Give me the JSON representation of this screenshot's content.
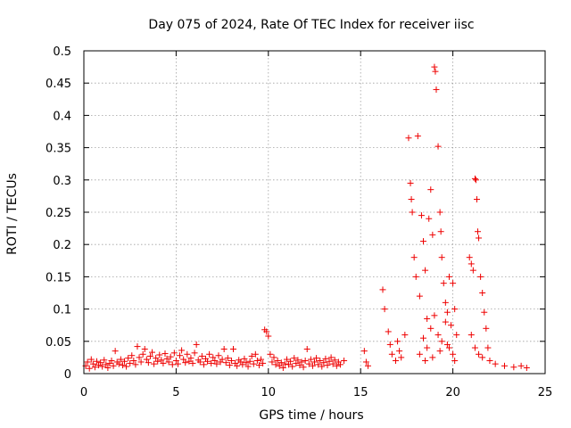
{
  "chart_data": {
    "type": "scatter",
    "title": "Day 075 of 2024, Rate Of TEC Index for receiver iisc",
    "xlabel": "GPS time / hours",
    "ylabel": "ROTI / TECUs",
    "xlim": [
      0,
      25
    ],
    "ylim": [
      0,
      0.5
    ],
    "xticks": [
      "0",
      "5",
      "10",
      "15",
      "20",
      "25"
    ],
    "yticks": [
      "0",
      "0.05",
      "0.1",
      "0.15",
      "0.2",
      "0.25",
      "0.3",
      "0.35",
      "0.4",
      "0.45",
      "0.5"
    ],
    "grid": true,
    "marker": "+",
    "color": "#ee0000",
    "series": [
      {
        "name": "ROTI",
        "points": [
          [
            0.1,
            0.012
          ],
          [
            0.2,
            0.018
          ],
          [
            0.3,
            0.008
          ],
          [
            0.4,
            0.022
          ],
          [
            0.5,
            0.015
          ],
          [
            0.6,
            0.01
          ],
          [
            0.7,
            0.019
          ],
          [
            0.8,
            0.013
          ],
          [
            0.9,
            0.017
          ],
          [
            1.0,
            0.011
          ],
          [
            1.1,
            0.021
          ],
          [
            1.2,
            0.014
          ],
          [
            1.3,
            0.009
          ],
          [
            1.4,
            0.016
          ],
          [
            1.5,
            0.02
          ],
          [
            1.6,
            0.012
          ],
          [
            1.7,
            0.035
          ],
          [
            1.8,
            0.018
          ],
          [
            1.9,
            0.015
          ],
          [
            2.0,
            0.022
          ],
          [
            2.1,
            0.013
          ],
          [
            2.2,
            0.019
          ],
          [
            2.3,
            0.011
          ],
          [
            2.4,
            0.024
          ],
          [
            2.5,
            0.016
          ],
          [
            2.6,
            0.028
          ],
          [
            2.7,
            0.02
          ],
          [
            2.8,
            0.014
          ],
          [
            2.9,
            0.042
          ],
          [
            3.0,
            0.025
          ],
          [
            3.1,
            0.018
          ],
          [
            3.2,
            0.03
          ],
          [
            3.3,
            0.038
          ],
          [
            3.4,
            0.022
          ],
          [
            3.5,
            0.017
          ],
          [
            3.6,
            0.027
          ],
          [
            3.7,
            0.033
          ],
          [
            3.8,
            0.015
          ],
          [
            3.9,
            0.024
          ],
          [
            4.0,
            0.019
          ],
          [
            4.1,
            0.029
          ],
          [
            4.2,
            0.021
          ],
          [
            4.3,
            0.016
          ],
          [
            4.4,
            0.031
          ],
          [
            4.5,
            0.023
          ],
          [
            4.6,
            0.018
          ],
          [
            4.7,
            0.026
          ],
          [
            4.8,
            0.014
          ],
          [
            4.9,
            0.032
          ],
          [
            5.0,
            0.02
          ],
          [
            5.1,
            0.015
          ],
          [
            5.2,
            0.028
          ],
          [
            5.3,
            0.036
          ],
          [
            5.4,
            0.022
          ],
          [
            5.5,
            0.017
          ],
          [
            5.6,
            0.03
          ],
          [
            5.7,
            0.019
          ],
          [
            5.8,
            0.024
          ],
          [
            5.9,
            0.016
          ],
          [
            6.0,
            0.032
          ],
          [
            6.1,
            0.045
          ],
          [
            6.2,
            0.021
          ],
          [
            6.3,
            0.018
          ],
          [
            6.4,
            0.027
          ],
          [
            6.5,
            0.014
          ],
          [
            6.6,
            0.023
          ],
          [
            6.7,
            0.019
          ],
          [
            6.8,
            0.03
          ],
          [
            6.9,
            0.016
          ],
          [
            7.0,
            0.025
          ],
          [
            7.1,
            0.02
          ],
          [
            7.2,
            0.015
          ],
          [
            7.3,
            0.028
          ],
          [
            7.4,
            0.018
          ],
          [
            7.5,
            0.022
          ],
          [
            7.6,
            0.038
          ],
          [
            7.7,
            0.017
          ],
          [
            7.8,
            0.024
          ],
          [
            7.9,
            0.013
          ],
          [
            8.0,
            0.02
          ],
          [
            8.1,
            0.038
          ],
          [
            8.2,
            0.016
          ],
          [
            8.3,
            0.012
          ],
          [
            8.4,
            0.021
          ],
          [
            8.5,
            0.018
          ],
          [
            8.6,
            0.014
          ],
          [
            8.7,
            0.023
          ],
          [
            8.8,
            0.017
          ],
          [
            8.9,
            0.011
          ],
          [
            9.0,
            0.019
          ],
          [
            9.1,
            0.027
          ],
          [
            9.2,
            0.015
          ],
          [
            9.3,
            0.03
          ],
          [
            9.4,
            0.02
          ],
          [
            9.5,
            0.013
          ],
          [
            9.6,
            0.022
          ],
          [
            9.7,
            0.016
          ],
          [
            9.8,
            0.068
          ],
          [
            9.9,
            0.065
          ],
          [
            10.0,
            0.058
          ],
          [
            10.1,
            0.03
          ],
          [
            10.2,
            0.018
          ],
          [
            10.3,
            0.025
          ],
          [
            10.4,
            0.014
          ],
          [
            10.5,
            0.02
          ],
          [
            10.6,
            0.012
          ],
          [
            10.7,
            0.017
          ],
          [
            10.8,
            0.009
          ],
          [
            10.9,
            0.015
          ],
          [
            11.0,
            0.022
          ],
          [
            11.1,
            0.014
          ],
          [
            11.2,
            0.019
          ],
          [
            11.3,
            0.011
          ],
          [
            11.4,
            0.024
          ],
          [
            11.5,
            0.016
          ],
          [
            11.6,
            0.021
          ],
          [
            11.7,
            0.013
          ],
          [
            11.8,
            0.018
          ],
          [
            11.9,
            0.01
          ],
          [
            12.0,
            0.02
          ],
          [
            12.1,
            0.038
          ],
          [
            12.2,
            0.015
          ],
          [
            12.3,
            0.022
          ],
          [
            12.4,
            0.012
          ],
          [
            12.5,
            0.018
          ],
          [
            12.6,
            0.024
          ],
          [
            12.7,
            0.014
          ],
          [
            12.8,
            0.02
          ],
          [
            12.9,
            0.011
          ],
          [
            13.0,
            0.017
          ],
          [
            13.1,
            0.023
          ],
          [
            13.2,
            0.013
          ],
          [
            13.3,
            0.019
          ],
          [
            13.4,
            0.025
          ],
          [
            13.5,
            0.015
          ],
          [
            13.6,
            0.021
          ],
          [
            13.7,
            0.012
          ],
          [
            13.8,
            0.018
          ],
          [
            13.9,
            0.014
          ],
          [
            14.1,
            0.02
          ],
          [
            15.2,
            0.035
          ],
          [
            15.3,
            0.018
          ],
          [
            15.4,
            0.012
          ],
          [
            16.2,
            0.13
          ],
          [
            16.3,
            0.1
          ],
          [
            16.5,
            0.065
          ],
          [
            16.6,
            0.045
          ],
          [
            16.7,
            0.03
          ],
          [
            16.9,
            0.02
          ],
          [
            17.0,
            0.05
          ],
          [
            17.1,
            0.035
          ],
          [
            17.2,
            0.025
          ],
          [
            17.4,
            0.06
          ],
          [
            17.6,
            0.365
          ],
          [
            17.7,
            0.295
          ],
          [
            17.75,
            0.27
          ],
          [
            17.8,
            0.25
          ],
          [
            17.9,
            0.18
          ],
          [
            18.0,
            0.15
          ],
          [
            18.1,
            0.368
          ],
          [
            18.2,
            0.12
          ],
          [
            18.3,
            0.245
          ],
          [
            18.4,
            0.205
          ],
          [
            18.5,
            0.16
          ],
          [
            18.6,
            0.085
          ],
          [
            18.7,
            0.24
          ],
          [
            18.8,
            0.285
          ],
          [
            18.9,
            0.215
          ],
          [
            19.0,
            0.475
          ],
          [
            19.05,
            0.468
          ],
          [
            19.1,
            0.44
          ],
          [
            19.2,
            0.352
          ],
          [
            19.3,
            0.25
          ],
          [
            19.35,
            0.22
          ],
          [
            19.4,
            0.18
          ],
          [
            19.5,
            0.14
          ],
          [
            19.6,
            0.11
          ],
          [
            19.7,
            0.095
          ],
          [
            19.8,
            0.15
          ],
          [
            19.9,
            0.075
          ],
          [
            20.0,
            0.14
          ],
          [
            20.1,
            0.1
          ],
          [
            20.2,
            0.06
          ],
          [
            18.2,
            0.03
          ],
          [
            18.4,
            0.055
          ],
          [
            18.6,
            0.04
          ],
          [
            18.8,
            0.07
          ],
          [
            19.0,
            0.09
          ],
          [
            19.2,
            0.06
          ],
          [
            19.4,
            0.05
          ],
          [
            19.6,
            0.08
          ],
          [
            19.8,
            0.04
          ],
          [
            20.0,
            0.03
          ],
          [
            18.5,
            0.02
          ],
          [
            18.9,
            0.025
          ],
          [
            19.3,
            0.035
          ],
          [
            19.7,
            0.045
          ],
          [
            20.1,
            0.02
          ],
          [
            20.9,
            0.18
          ],
          [
            21.0,
            0.17
          ],
          [
            21.1,
            0.16
          ],
          [
            21.2,
            0.302
          ],
          [
            21.25,
            0.3
          ],
          [
            21.3,
            0.27
          ],
          [
            21.35,
            0.22
          ],
          [
            21.4,
            0.21
          ],
          [
            21.5,
            0.15
          ],
          [
            21.6,
            0.125
          ],
          [
            21.7,
            0.095
          ],
          [
            21.8,
            0.07
          ],
          [
            21.9,
            0.04
          ],
          [
            22.0,
            0.02
          ],
          [
            21.0,
            0.06
          ],
          [
            21.2,
            0.04
          ],
          [
            21.4,
            0.03
          ],
          [
            21.6,
            0.025
          ],
          [
            22.3,
            0.015
          ],
          [
            22.8,
            0.012
          ],
          [
            23.3,
            0.01
          ],
          [
            23.7,
            0.012
          ],
          [
            24.0,
            0.009
          ]
        ]
      }
    ]
  }
}
